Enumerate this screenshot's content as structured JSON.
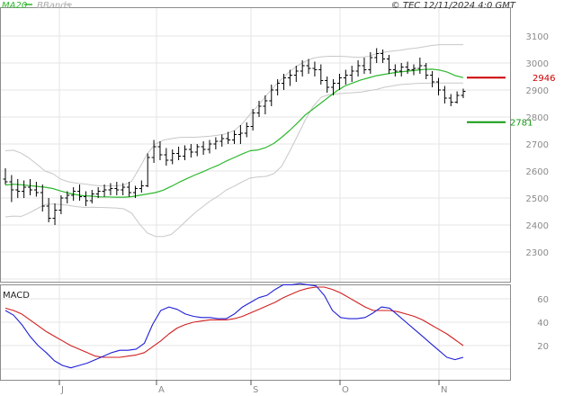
{
  "header": {
    "legend_ma": "MA20",
    "legend_bb": "BBands",
    "copyright": "© TEC 12/11/2024 4:0 GMT"
  },
  "macd_label": "MACD",
  "colors": {
    "candle": "#000000",
    "ma": "#2db82d",
    "bbands": "#c8c8c8",
    "macd": "#1f1fd6",
    "signal": "#d21e1e",
    "grid": "#e4e4e4",
    "axis_text": "#8a8a8a",
    "resistance": "#cc0000",
    "support": "#119a11"
  },
  "chart_data": [
    {
      "type": "candlestick",
      "title": "",
      "ylim": [
        2200,
        3150
      ],
      "y_ticks": [
        "2300",
        "2400",
        "2500",
        "2600",
        "2700",
        "2800",
        "2900",
        "3000",
        "3100"
      ],
      "x_ticks": [
        "J",
        "A",
        "S",
        "O",
        "N"
      ],
      "grid": true,
      "levels": [
        {
          "name": "resistance",
          "value": 2946,
          "label": "2946"
        },
        {
          "name": "support",
          "value": 2781,
          "label": "2781"
        }
      ],
      "series": [
        {
          "name": "MA20",
          "type": "line",
          "values": [
            2548,
            2551,
            2549,
            2546,
            2543,
            2540,
            2535,
            2526,
            2518,
            2512,
            2508,
            2507,
            2504,
            2504,
            2503,
            2503,
            2505,
            2510,
            2515,
            2520,
            2529,
            2543,
            2558,
            2572,
            2585,
            2597,
            2610,
            2622,
            2637,
            2650,
            2663,
            2675,
            2678,
            2687,
            2702,
            2725,
            2750,
            2778,
            2808,
            2830,
            2852,
            2875,
            2897,
            2915,
            2926,
            2937,
            2945,
            2953,
            2958,
            2963,
            2967,
            2970,
            2973,
            2976,
            2977,
            2974,
            2966,
            2953,
            2946
          ]
        },
        {
          "name": "BBands upper",
          "type": "line",
          "values": [
            2675,
            2677,
            2666,
            2648,
            2625,
            2600,
            2590,
            2570,
            2560,
            2555,
            2552,
            2548,
            2545,
            2545,
            2545,
            2548,
            2562,
            2612,
            2665,
            2700,
            2714,
            2720,
            2724,
            2725,
            2725,
            2727,
            2729,
            2733,
            2738,
            2750,
            2775,
            2810,
            2842,
            2878,
            2911,
            2941,
            2968,
            2990,
            3006,
            3018,
            3023,
            3025,
            3025,
            3024,
            3022,
            3021,
            3025,
            3034,
            3040,
            3044,
            3047,
            3052,
            3055,
            3060,
            3065,
            3068,
            3068,
            3068,
            3068
          ]
        },
        {
          "name": "BBands lower",
          "type": "line",
          "values": [
            2430,
            2433,
            2432,
            2444,
            2460,
            2476,
            2478,
            2476,
            2473,
            2468,
            2465,
            2466,
            2465,
            2464,
            2463,
            2460,
            2444,
            2403,
            2370,
            2358,
            2357,
            2365,
            2390,
            2418,
            2445,
            2468,
            2490,
            2508,
            2530,
            2544,
            2560,
            2574,
            2578,
            2580,
            2590,
            2618,
            2672,
            2730,
            2790,
            2840,
            2873,
            2883,
            2886,
            2888,
            2890,
            2892,
            2897,
            2902,
            2910,
            2915,
            2920,
            2922,
            2924,
            2925,
            2926,
            2926,
            2926,
            2926,
            2926
          ]
        }
      ],
      "candles": [
        {
          "o": 2570,
          "h": 2610,
          "l": 2550,
          "c": 2560
        },
        {
          "o": 2560,
          "h": 2585,
          "l": 2485,
          "c": 2530
        },
        {
          "o": 2530,
          "h": 2570,
          "l": 2500,
          "c": 2525
        },
        {
          "o": 2525,
          "h": 2565,
          "l": 2500,
          "c": 2540
        },
        {
          "o": 2540,
          "h": 2570,
          "l": 2510,
          "c": 2530
        },
        {
          "o": 2530,
          "h": 2560,
          "l": 2505,
          "c": 2520
        },
        {
          "o": 2520,
          "h": 2550,
          "l": 2450,
          "c": 2470
        },
        {
          "o": 2470,
          "h": 2500,
          "l": 2410,
          "c": 2425
        },
        {
          "o": 2425,
          "h": 2480,
          "l": 2400,
          "c": 2455
        },
        {
          "o": 2455,
          "h": 2510,
          "l": 2440,
          "c": 2500
        },
        {
          "o": 2500,
          "h": 2525,
          "l": 2480,
          "c": 2510
        },
        {
          "o": 2510,
          "h": 2540,
          "l": 2490,
          "c": 2525
        },
        {
          "o": 2525,
          "h": 2550,
          "l": 2490,
          "c": 2505
        },
        {
          "o": 2505,
          "h": 2525,
          "l": 2470,
          "c": 2490
        },
        {
          "o": 2490,
          "h": 2530,
          "l": 2480,
          "c": 2515
        },
        {
          "o": 2515,
          "h": 2540,
          "l": 2500,
          "c": 2525
        },
        {
          "o": 2525,
          "h": 2550,
          "l": 2505,
          "c": 2530
        },
        {
          "o": 2530,
          "h": 2555,
          "l": 2510,
          "c": 2535
        },
        {
          "o": 2535,
          "h": 2560,
          "l": 2510,
          "c": 2530
        },
        {
          "o": 2530,
          "h": 2555,
          "l": 2510,
          "c": 2540
        },
        {
          "o": 2540,
          "h": 2560,
          "l": 2505,
          "c": 2520
        },
        {
          "o": 2520,
          "h": 2545,
          "l": 2500,
          "c": 2535
        },
        {
          "o": 2535,
          "h": 2565,
          "l": 2520,
          "c": 2545
        },
        {
          "o": 2545,
          "h": 2665,
          "l": 2540,
          "c": 2650
        },
        {
          "o": 2650,
          "h": 2715,
          "l": 2630,
          "c": 2690
        },
        {
          "o": 2690,
          "h": 2710,
          "l": 2640,
          "c": 2660
        },
        {
          "o": 2660,
          "h": 2685,
          "l": 2620,
          "c": 2640
        },
        {
          "o": 2640,
          "h": 2680,
          "l": 2625,
          "c": 2665
        },
        {
          "o": 2665,
          "h": 2690,
          "l": 2640,
          "c": 2655
        },
        {
          "o": 2655,
          "h": 2695,
          "l": 2640,
          "c": 2680
        },
        {
          "o": 2680,
          "h": 2700,
          "l": 2650,
          "c": 2670
        },
        {
          "o": 2670,
          "h": 2700,
          "l": 2655,
          "c": 2690
        },
        {
          "o": 2690,
          "h": 2710,
          "l": 2660,
          "c": 2680
        },
        {
          "o": 2680,
          "h": 2715,
          "l": 2665,
          "c": 2700
        },
        {
          "o": 2700,
          "h": 2725,
          "l": 2680,
          "c": 2710
        },
        {
          "o": 2710,
          "h": 2735,
          "l": 2690,
          "c": 2720
        },
        {
          "o": 2720,
          "h": 2745,
          "l": 2700,
          "c": 2715
        },
        {
          "o": 2715,
          "h": 2750,
          "l": 2700,
          "c": 2735
        },
        {
          "o": 2735,
          "h": 2770,
          "l": 2700,
          "c": 2740
        },
        {
          "o": 2740,
          "h": 2780,
          "l": 2725,
          "c": 2765
        },
        {
          "o": 2765,
          "h": 2830,
          "l": 2750,
          "c": 2815
        },
        {
          "o": 2815,
          "h": 2860,
          "l": 2800,
          "c": 2840
        },
        {
          "o": 2840,
          "h": 2880,
          "l": 2810,
          "c": 2860
        },
        {
          "o": 2860,
          "h": 2920,
          "l": 2840,
          "c": 2900
        },
        {
          "o": 2900,
          "h": 2940,
          "l": 2880,
          "c": 2925
        },
        {
          "o": 2925,
          "h": 2960,
          "l": 2900,
          "c": 2945
        },
        {
          "o": 2945,
          "h": 2975,
          "l": 2915,
          "c": 2955
        },
        {
          "o": 2955,
          "h": 2990,
          "l": 2930,
          "c": 2970
        },
        {
          "o": 2970,
          "h": 3010,
          "l": 2950,
          "c": 2990
        },
        {
          "o": 2990,
          "h": 3015,
          "l": 2960,
          "c": 2980
        },
        {
          "o": 2980,
          "h": 3005,
          "l": 2950,
          "c": 2975
        },
        {
          "o": 2975,
          "h": 2995,
          "l": 2920,
          "c": 2935
        },
        {
          "o": 2935,
          "h": 2950,
          "l": 2890,
          "c": 2910
        },
        {
          "o": 2910,
          "h": 2940,
          "l": 2880,
          "c": 2925
        },
        {
          "o": 2925,
          "h": 2960,
          "l": 2900,
          "c": 2945
        },
        {
          "o": 2945,
          "h": 2975,
          "l": 2920,
          "c": 2955
        },
        {
          "o": 2955,
          "h": 2990,
          "l": 2930,
          "c": 2970
        },
        {
          "o": 2970,
          "h": 3010,
          "l": 2950,
          "c": 2990
        },
        {
          "o": 2990,
          "h": 3020,
          "l": 2960,
          "c": 2975
        },
        {
          "o": 2975,
          "h": 3040,
          "l": 2960,
          "c": 3020
        },
        {
          "o": 3020,
          "h": 3055,
          "l": 3000,
          "c": 3035
        },
        {
          "o": 3035,
          "h": 3050,
          "l": 3000,
          "c": 3015
        },
        {
          "o": 3015,
          "h": 3030,
          "l": 2960,
          "c": 2975
        },
        {
          "o": 2975,
          "h": 2995,
          "l": 2950,
          "c": 2970
        },
        {
          "o": 2970,
          "h": 3000,
          "l": 2950,
          "c": 2985
        },
        {
          "o": 2985,
          "h": 3005,
          "l": 2960,
          "c": 2975
        },
        {
          "o": 2975,
          "h": 2995,
          "l": 2955,
          "c": 2980
        },
        {
          "o": 2980,
          "h": 3020,
          "l": 2960,
          "c": 2990
        },
        {
          "o": 2990,
          "h": 3000,
          "l": 2940,
          "c": 2955
        },
        {
          "o": 2955,
          "h": 2970,
          "l": 2910,
          "c": 2930
        },
        {
          "o": 2930,
          "h": 2945,
          "l": 2880,
          "c": 2900
        },
        {
          "o": 2900,
          "h": 2915,
          "l": 2850,
          "c": 2870
        },
        {
          "o": 2870,
          "h": 2885,
          "l": 2840,
          "c": 2855
        },
        {
          "o": 2855,
          "h": 2895,
          "l": 2850,
          "c": 2880
        },
        {
          "o": 2880,
          "h": 2905,
          "l": 2870,
          "c": 2895
        }
      ]
    },
    {
      "type": "line",
      "title": "MACD",
      "ylim": [
        -5,
        75
      ],
      "y_ticks": [
        "20",
        "40",
        "60"
      ],
      "x_ticks": [
        "J",
        "A",
        "S",
        "O",
        "N"
      ],
      "series": [
        {
          "name": "MACD",
          "values": [
            50,
            46,
            38,
            28,
            20,
            14,
            7,
            3,
            1,
            3,
            5,
            8,
            11,
            14,
            16,
            16,
            17,
            22,
            38,
            50,
            53,
            51,
            47,
            45,
            44,
            44,
            43,
            43,
            47,
            53,
            57,
            61,
            63,
            68,
            72,
            72,
            73,
            72,
            71,
            63,
            50,
            44,
            43,
            43,
            44,
            48,
            53,
            52,
            46,
            40,
            34,
            28,
            22,
            16,
            10,
            8,
            10
          ]
        },
        {
          "name": "Signal",
          "values": [
            52,
            50,
            47,
            42,
            37,
            32,
            28,
            24,
            20,
            17,
            14,
            11,
            10,
            10,
            10,
            11,
            12,
            14,
            19,
            24,
            30,
            35,
            38,
            40,
            41,
            42,
            42,
            42,
            43,
            45,
            48,
            51,
            54,
            57,
            61,
            64,
            67,
            69,
            70,
            70,
            68,
            65,
            61,
            57,
            53,
            50,
            50,
            50,
            49,
            47,
            45,
            42,
            38,
            34,
            30,
            25,
            20
          ]
        }
      ]
    }
  ]
}
